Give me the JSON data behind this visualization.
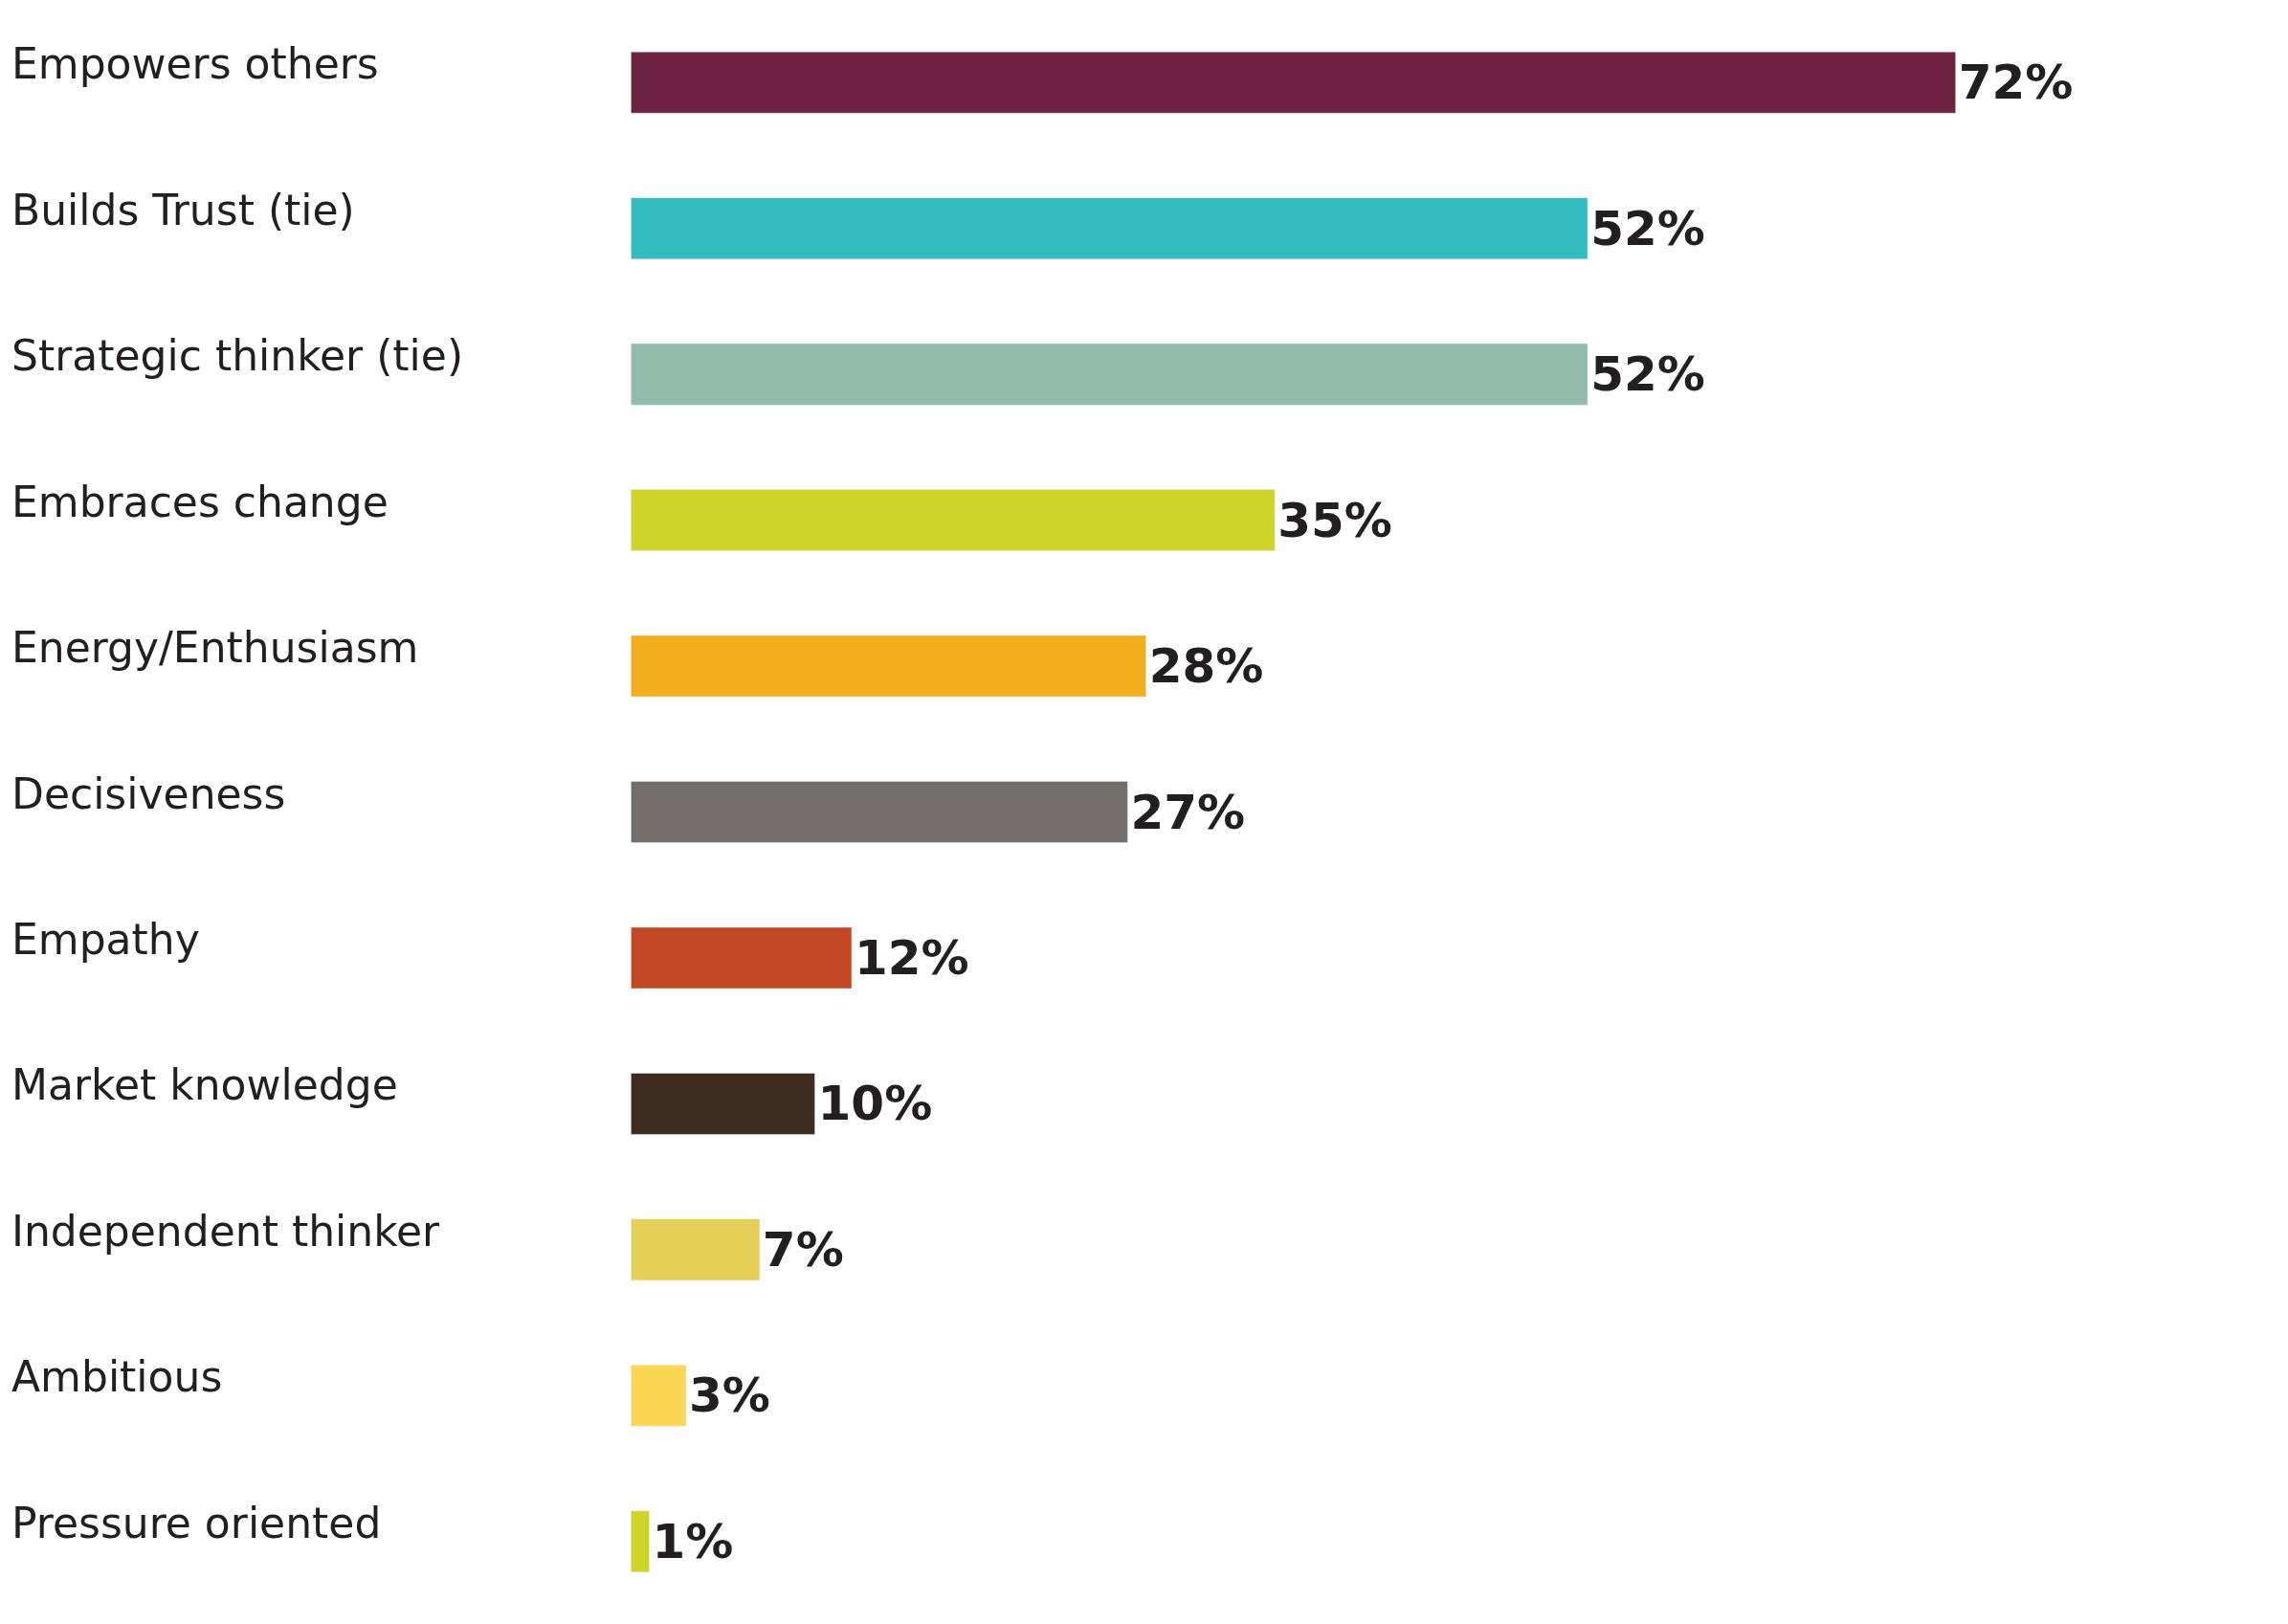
{
  "chart_data": {
    "type": "bar",
    "orientation": "horizontal",
    "categories": [
      "Empowers others",
      "Builds Trust (tie)",
      "Strategic thinker (tie)",
      "Embraces change",
      "Energy/Enthusiasm",
      "Decisiveness",
      "Empathy",
      "Market knowledge",
      "Independent thinker",
      "Ambitious",
      "Pressure oriented"
    ],
    "values": [
      72,
      52,
      52,
      35,
      28,
      27,
      12,
      10,
      7,
      3,
      1
    ],
    "value_labels": [
      "72%",
      "52%",
      "52%",
      "35%",
      "28%",
      "27%",
      "12%",
      "10%",
      "7%",
      "3%",
      "1%"
    ],
    "colors": [
      "#6c2240",
      "#34bdbf",
      "#93bbab",
      "#ced527",
      "#f3ae1d",
      "#736d6b",
      "#c34a25",
      "#3f2d1f",
      "#e5d057",
      "#fdd753",
      "#ced527"
    ],
    "legend": false
  }
}
